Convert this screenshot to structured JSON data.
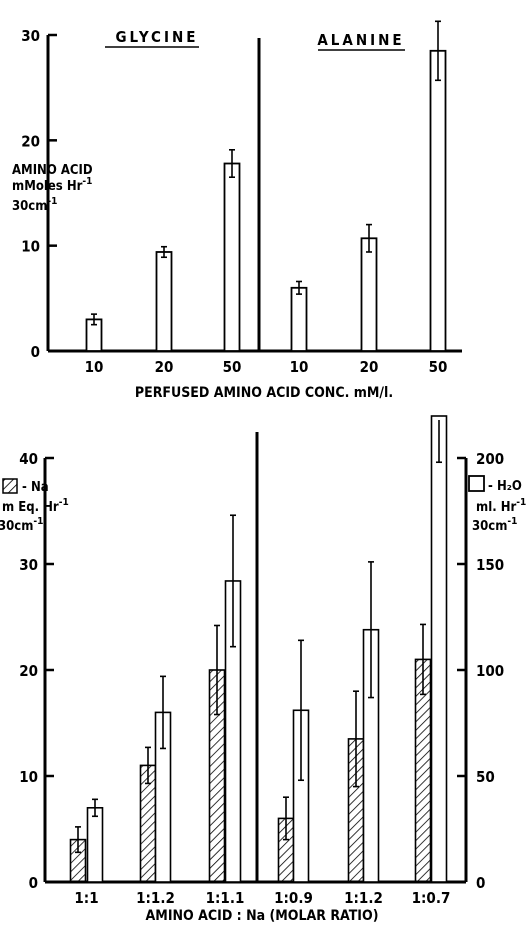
{
  "chart_data": [
    {
      "type": "bar",
      "group_titles": [
        "GLYCINE",
        "ALANINE"
      ],
      "categories": [
        "10",
        "20",
        "50",
        "10",
        "20",
        "50"
      ],
      "values": [
        3.0,
        9.4,
        17.8,
        6.0,
        10.7,
        28.5
      ],
      "errors": [
        0.5,
        0.5,
        1.3,
        0.6,
        1.3,
        2.8
      ],
      "ylabel": [
        "AMINO ACID",
        "mMoles Hr",
        "30cm"
      ],
      "ylabel_exp": [
        "",
        "-1",
        "-1"
      ],
      "xlabel": "PERFUSED AMINO ACID CONC. mM/l.",
      "ylim": [
        0,
        30
      ],
      "yticks": [
        "0",
        "10",
        "20",
        "30"
      ],
      "grid": false
    },
    {
      "type": "bar",
      "categories": [
        "1:1",
        "1:1.2",
        "1:1.1",
        "1:0.9",
        "1:1.2",
        "1:0.7"
      ],
      "series": [
        {
          "legend": "Na",
          "axis": "left",
          "values": [
            4.0,
            11.0,
            20.0,
            6.0,
            13.5,
            21.0
          ],
          "errors": [
            1.2,
            1.7,
            4.2,
            2.0,
            4.5,
            3.3
          ]
        },
        {
          "legend": "H₂O",
          "axis": "right",
          "values": [
            35,
            80,
            142,
            81,
            119,
            242
          ],
          "errors": [
            4,
            17,
            31,
            33,
            32,
            44
          ]
        }
      ],
      "left_ylabel": [
        "m Eq. Hr",
        "30cm"
      ],
      "left_ylabel_exp": [
        "-1",
        "-1"
      ],
      "right_ylabel": [
        "ml. Hr",
        "30cm"
      ],
      "right_ylabel_exp": [
        "-1",
        "-1"
      ],
      "xlabel": "AMINO ACID : Na  (MOLAR RATIO)",
      "left_ylim": [
        0,
        40
      ],
      "left_yticks": [
        "0",
        "10",
        "20",
        "30",
        "40"
      ],
      "right_ylim": [
        0,
        200
      ],
      "right_yticks": [
        "0",
        "50",
        "100",
        "150",
        "200"
      ],
      "grid": false
    }
  ]
}
